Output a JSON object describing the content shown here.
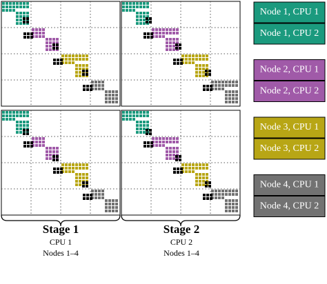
{
  "legend": [
    {
      "label": "Node 1, CPU 1"
    },
    {
      "label": "Node 1, CPU 2"
    },
    {
      "label": "Node 2, CPU 1"
    },
    {
      "label": "Node 2, CPU 2"
    },
    {
      "label": "Node 3, CPU 1"
    },
    {
      "label": "Node 3, CPU 2"
    },
    {
      "label": "Node 4, CPU 1"
    },
    {
      "label": "Node 4, CPU 2"
    }
  ],
  "stages": [
    {
      "title": "Stage 1",
      "cpu": "CPU 1",
      "nodes": "Nodes 1–4"
    },
    {
      "title": "Stage 2",
      "cpu": "CPU 2",
      "nodes": "Nodes 1–4"
    }
  ]
}
